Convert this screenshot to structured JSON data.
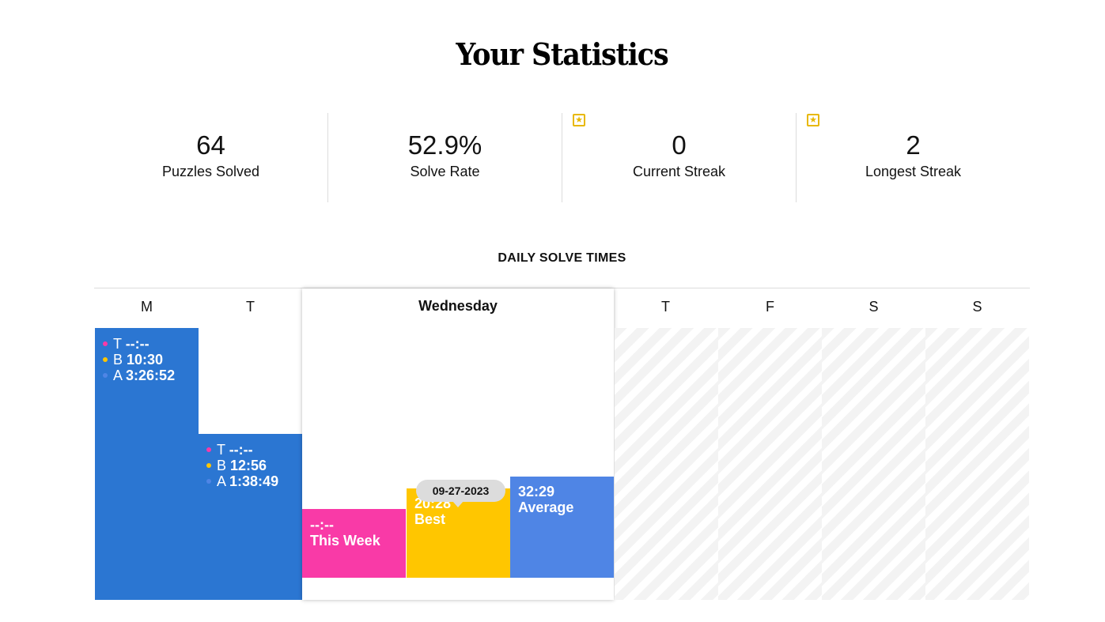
{
  "page": {
    "title": "Your Statistics"
  },
  "stats": [
    {
      "value": "64",
      "label": "Puzzles Solved",
      "starred": false
    },
    {
      "value": "52.9%",
      "label": "Solve Rate",
      "starred": false
    },
    {
      "value": "0",
      "label": "Current Streak",
      "starred": true
    },
    {
      "value": "2",
      "label": "Longest Streak",
      "starred": true
    }
  ],
  "chart": {
    "heading": "DAILY SOLVE TIMES",
    "days": [
      "M",
      "T",
      "Wednesday",
      "T",
      "F",
      "S",
      "S"
    ],
    "monday": {
      "lines": [
        {
          "key": "T",
          "value": "--:--",
          "color": "#f93aa7"
        },
        {
          "key": "B",
          "value": "10:30",
          "color": "#ffc600"
        },
        {
          "key": "A",
          "value": "3:26:52",
          "color": "#4f85e5"
        }
      ]
    },
    "tuesday": {
      "lines": [
        {
          "key": "T",
          "value": "--:--",
          "color": "#f93aa7"
        },
        {
          "key": "B",
          "value": "12:56",
          "color": "#ffc600"
        },
        {
          "key": "A",
          "value": "1:38:49",
          "color": "#4f85e5"
        }
      ]
    },
    "wednesday": {
      "this_week": {
        "time": "--:--",
        "label": "This Week",
        "color": "#f93aa7"
      },
      "best": {
        "time": "20:28",
        "label": "Best",
        "date": "09-27-2023",
        "color": "#ffc600"
      },
      "average": {
        "time": "32:29",
        "label": "Average",
        "color": "#4f85e5"
      }
    }
  },
  "chart_data": {
    "type": "bar",
    "title": "DAILY SOLVE TIMES",
    "categories": [
      "M",
      "T",
      "Wednesday",
      "T",
      "F",
      "S",
      "S"
    ],
    "series": [
      {
        "name": "T",
        "values": [
          null,
          null,
          null,
          null,
          null,
          null,
          null
        ]
      },
      {
        "name": "B",
        "values": [
          "10:30",
          "12:56",
          "20:28",
          null,
          null,
          null,
          null
        ]
      },
      {
        "name": "A",
        "values": [
          "3:26:52",
          "1:38:49",
          "32:29",
          null,
          null,
          null,
          null
        ]
      }
    ],
    "future_days": [
      "T",
      "F",
      "S",
      "S"
    ]
  }
}
